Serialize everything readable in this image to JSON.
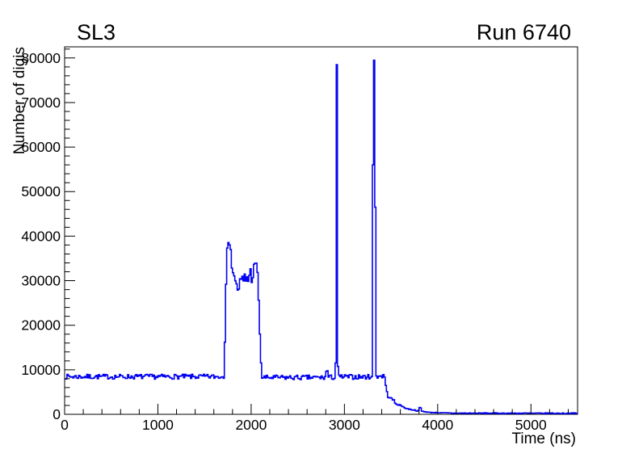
{
  "chart_data": {
    "type": "line",
    "subtype": "step-histogram",
    "title": "SL3",
    "corner_label": "Run 6740",
    "xlabel": "Time (ns)",
    "ylabel": "Number of digis",
    "xlim": [
      0,
      5500
    ],
    "ylim": [
      0,
      82500
    ],
    "x_major_ticks": [
      0,
      1000,
      2000,
      3000,
      4000,
      5000
    ],
    "x_minor_step": 200,
    "y_major_ticks": [
      0,
      10000,
      20000,
      30000,
      40000,
      50000,
      60000,
      70000,
      80000
    ],
    "y_minor_step": 2000,
    "grid": false,
    "legend": "none",
    "line_color": "#0202f0",
    "axis_color": "#000000",
    "background_color": "#ffffff",
    "bin_width_ns": 12.5,
    "noise_seed": 7,
    "series_segments": [
      {
        "t0": 0,
        "t1": 1712,
        "from": 8450,
        "to": 8450,
        "amp": 550
      },
      {
        "t0": 1712,
        "t1": 1726,
        "from": 9500,
        "to": 24000,
        "amp": 300
      },
      {
        "t0": 1726,
        "t1": 1748,
        "from": 26000,
        "to": 40500,
        "amp": 400
      },
      {
        "t0": 1748,
        "t1": 1768,
        "from": 40500,
        "to": 37500,
        "amp": 900
      },
      {
        "t0": 1768,
        "t1": 1850,
        "from": 37000,
        "to": 27900,
        "amp": 1500
      },
      {
        "t0": 1850,
        "t1": 2065,
        "from": 28400,
        "to": 32800,
        "amp": 2400
      },
      {
        "t0": 2065,
        "t1": 2085,
        "from": 33800,
        "to": 24000,
        "amp": 800
      },
      {
        "t0": 2085,
        "t1": 2112,
        "from": 22000,
        "to": 8900,
        "amp": 300
      },
      {
        "t0": 2112,
        "t1": 2800,
        "from": 8250,
        "to": 8250,
        "amp": 550
      },
      {
        "t0": 2800,
        "t1": 2826,
        "from": 9700,
        "to": 9700,
        "amp": 700
      },
      {
        "t0": 2826,
        "t1": 2899,
        "from": 8300,
        "to": 8300,
        "amp": 550
      },
      {
        "t0": 2899,
        "t1": 2912,
        "from": 11500,
        "to": 11500,
        "amp": 400
      },
      {
        "t0": 2912,
        "t1": 2924,
        "from": 78500,
        "to": 78500,
        "amp": 0
      },
      {
        "t0": 2924,
        "t1": 2936,
        "from": 10500,
        "to": 10500,
        "amp": 300
      },
      {
        "t0": 2936,
        "t1": 3269,
        "from": 8400,
        "to": 8400,
        "amp": 550
      },
      {
        "t0": 3269,
        "t1": 3281,
        "from": 47500,
        "to": 47500,
        "amp": 0
      },
      {
        "t0": 3281,
        "t1": 3305,
        "from": 8600,
        "to": 8600,
        "amp": 450
      },
      {
        "t0": 3305,
        "t1": 3317,
        "from": 56000,
        "to": 56000,
        "amp": 0
      },
      {
        "t0": 3317,
        "t1": 3329,
        "from": 79500,
        "to": 79500,
        "amp": 0
      },
      {
        "t0": 3329,
        "t1": 3341,
        "from": 46500,
        "to": 46500,
        "amp": 0
      },
      {
        "t0": 3341,
        "t1": 3437,
        "from": 8600,
        "to": 8600,
        "amp": 600
      },
      {
        "t0": 3437,
        "t1": 3462,
        "from": 7200,
        "to": 4300,
        "amp": 200
      },
      {
        "t0": 3462,
        "t1": 3540,
        "from": 4100,
        "to": 3000,
        "amp": 220
      },
      {
        "t0": 3540,
        "t1": 3650,
        "from": 2500,
        "to": 1550,
        "amp": 150
      },
      {
        "t0": 3650,
        "t1": 3800,
        "from": 1350,
        "to": 750,
        "amp": 110
      },
      {
        "t0": 3800,
        "t1": 3828,
        "from": 1450,
        "to": 1450,
        "amp": 100
      },
      {
        "t0": 3828,
        "t1": 3905,
        "from": 700,
        "to": 460,
        "amp": 80
      },
      {
        "t0": 3905,
        "t1": 4150,
        "from": 430,
        "to": 280,
        "amp": 70
      },
      {
        "t0": 4150,
        "t1": 5500,
        "from": 250,
        "to": 220,
        "amp": 110
      }
    ],
    "key_points": {
      "baseline_level": 8500,
      "bump_range_ns": [
        1715,
        2110
      ],
      "bump_peak": {
        "t": 1750,
        "value": 40500
      },
      "bump_plateau_band": [
        27500,
        33500
      ],
      "spike1": {
        "t": 2918,
        "value": 78500
      },
      "spike2": {
        "t": 3323,
        "value": 79500
      },
      "spike2_pre": {
        "t": 3275,
        "value": 47500
      },
      "tail_blip": {
        "t": 3810,
        "value": 1450
      },
      "tail_level": 220
    }
  }
}
